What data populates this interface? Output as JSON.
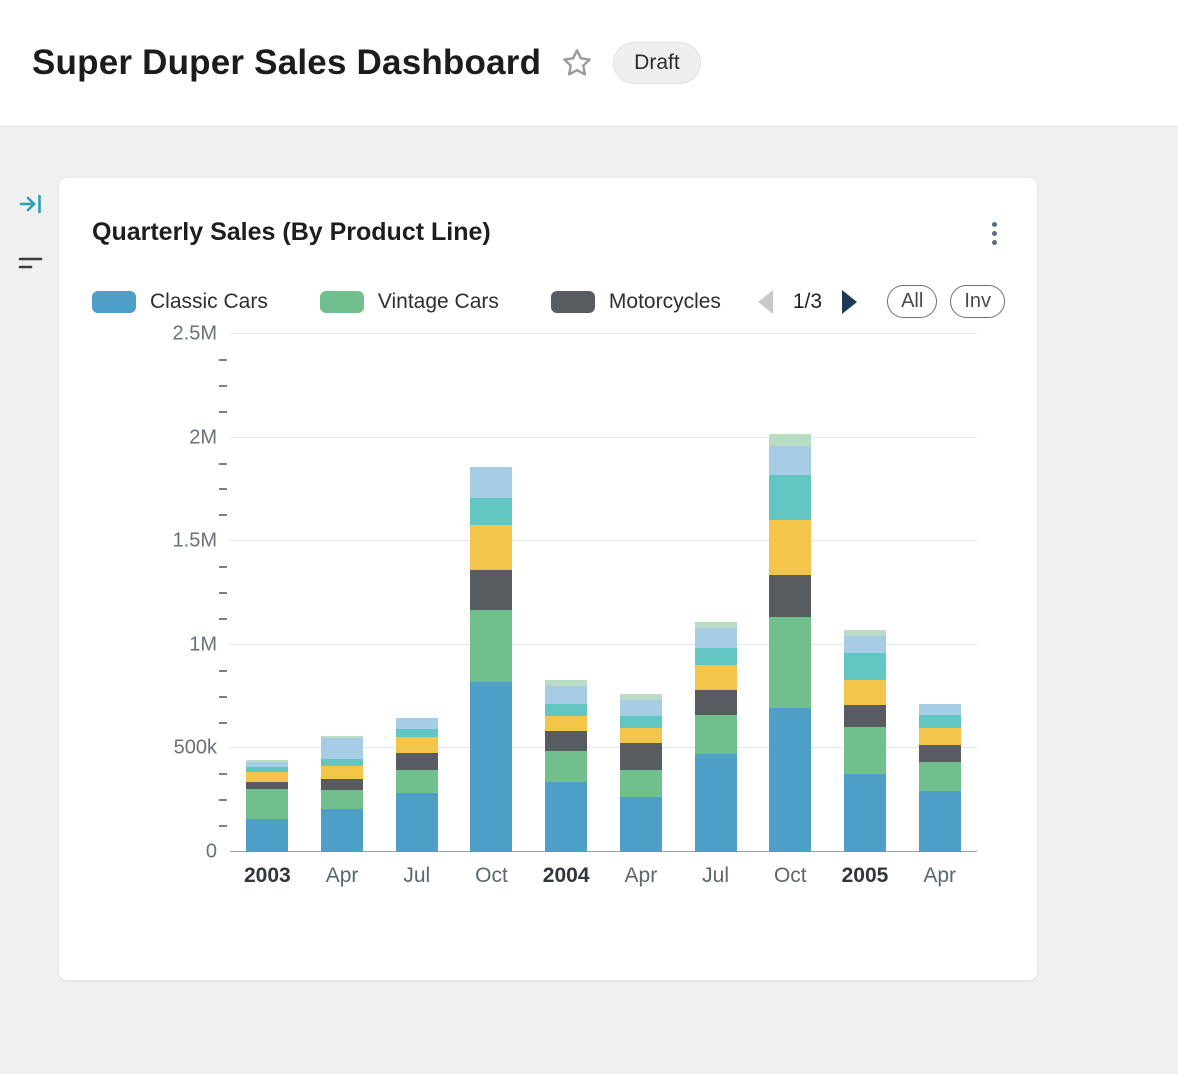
{
  "page": {
    "title": "Super Duper Sales Dashboard",
    "status_badge": "Draft"
  },
  "icons": {
    "favorite": "star-outline",
    "card_menu": "kebab-vertical-dots",
    "side_collapse": "arrow-to-line",
    "side_filter": "filter-lines",
    "pager_prev": "triangle-left",
    "pager_next": "triangle-right"
  },
  "card": {
    "title": "Quarterly Sales (By Product Line)",
    "pager": {
      "current_page": "1/3"
    },
    "filter_buttons": [
      {
        "label": "All"
      },
      {
        "label": "Inv"
      }
    ]
  },
  "colors": {
    "pager_next_arrow": "#1c3a55",
    "pager_prev_arrow": "#c9c9c9",
    "side_collapse_icon": "#2aa0b8",
    "card_background": "#ffffff",
    "page_background": "#f0f0f0"
  },
  "chart_data": {
    "type": "bar",
    "stacked": true,
    "title": "Quarterly Sales (By Product Line)",
    "unit": "USD, values in thousands",
    "categories": [
      "2003",
      "Apr",
      "Jul",
      "Oct",
      "2004",
      "Apr",
      "Jul",
      "Oct",
      "2005",
      "Apr"
    ],
    "series": [
      {
        "name": "Classic Cars",
        "color": "#4e9fc7",
        "in_legend": true,
        "values": [
          160,
          210,
          285,
          820,
          340,
          265,
          475,
          695,
          375,
          295
        ]
      },
      {
        "name": "Vintage Cars",
        "color": "#71bf8d",
        "in_legend": true,
        "values": [
          145,
          90,
          110,
          350,
          150,
          130,
          185,
          440,
          230,
          140
        ]
      },
      {
        "name": "Motorcycles",
        "color": "#585c61",
        "in_legend": true,
        "values": [
          35,
          55,
          85,
          190,
          95,
          130,
          120,
          200,
          105,
          80
        ]
      },
      {
        "name": "unlabeled-series-4-yellow",
        "color": "#f3c64b",
        "in_legend": false,
        "values": [
          45,
          60,
          75,
          220,
          70,
          75,
          125,
          270,
          120,
          85
        ]
      },
      {
        "name": "unlabeled-series-5-teal",
        "color": "#62c6c3",
        "in_legend": false,
        "values": [
          25,
          35,
          40,
          130,
          60,
          55,
          80,
          215,
          130,
          60
        ]
      },
      {
        "name": "unlabeled-series-6-lightblue",
        "color": "#a6cde5",
        "in_legend": false,
        "values": [
          25,
          100,
          50,
          150,
          85,
          80,
          95,
          140,
          80,
          55
        ]
      },
      {
        "name": "unlabeled-series-7-lightgreen",
        "color": "#b8ddc4",
        "in_legend": false,
        "values": [
          10,
          10,
          0,
          0,
          30,
          30,
          30,
          60,
          30,
          0
        ]
      }
    ],
    "yticks": [
      {
        "label": "2.5M",
        "value": 2500
      },
      {
        "label": "2M",
        "value": 2000
      },
      {
        "label": "1.5M",
        "value": 1500
      },
      {
        "label": "1M",
        "value": 1000
      },
      {
        "label": "500k",
        "value": 500
      },
      {
        "label": "0",
        "value": 0
      }
    ],
    "ylim": [
      0,
      2500
    ],
    "grid": "horizontal-major",
    "minor_ticks_per_interval": 3,
    "legend_position": "top",
    "legend_pages": "1/3"
  }
}
